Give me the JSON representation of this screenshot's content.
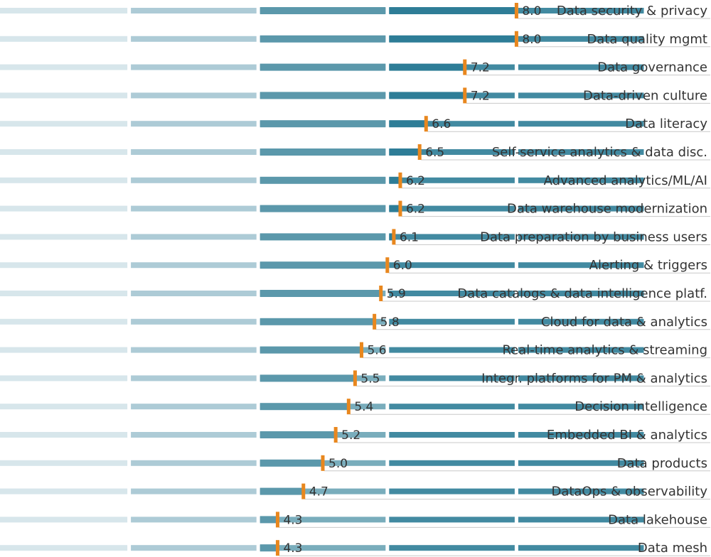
{
  "chart_data": {
    "type": "bar",
    "orientation": "horizontal",
    "categories": [
      "Data security & privacy",
      "Data quality mgmt",
      "Data governance",
      "Data-driven culture",
      "Data literacy",
      "Self-service analytics & data disc.",
      "Advanced analytics/ML/AI",
      "Data warehouse modernization",
      "Data preparation by business users",
      "Alerting & triggers",
      "Data catalogs & data intelligence platf.",
      "Cloud for data & analytics",
      "Real-time analytics & streaming",
      "Integr. platforms for PM & analytics",
      "Decision intelligence",
      "Embedded BI & analytics",
      "Data products",
      "DataOps & observability",
      "Data lakehouse",
      "Data mesh"
    ],
    "values": [
      8.0,
      8.0,
      7.2,
      7.2,
      6.6,
      6.5,
      6.2,
      6.2,
      6.1,
      6.0,
      5.9,
      5.8,
      5.6,
      5.5,
      5.4,
      5.2,
      5.0,
      4.7,
      4.3,
      4.3
    ],
    "value_labels": [
      "8.0",
      "8.0",
      "7.2",
      "7.2",
      "6.6",
      "6.5",
      "6.2",
      "6.2",
      "6.1",
      "6.0",
      "5.9",
      "5.8",
      "5.6",
      "5.5",
      "5.4",
      "5.2",
      "5.0",
      "4.7",
      "4.3",
      "4.3"
    ],
    "xlim": [
      0,
      10
    ],
    "title": "",
    "xlabel": "",
    "ylabel": "",
    "grid": false,
    "segment_boundaries": [
      2,
      4,
      6,
      8
    ],
    "colors": {
      "segments": [
        "#d3e3e9",
        "#a4c5d1",
        "#6aa4b5",
        "#2e7d97"
      ],
      "marker": "#e8871e",
      "label": "#333333",
      "underline": "#c8c8c8"
    }
  }
}
